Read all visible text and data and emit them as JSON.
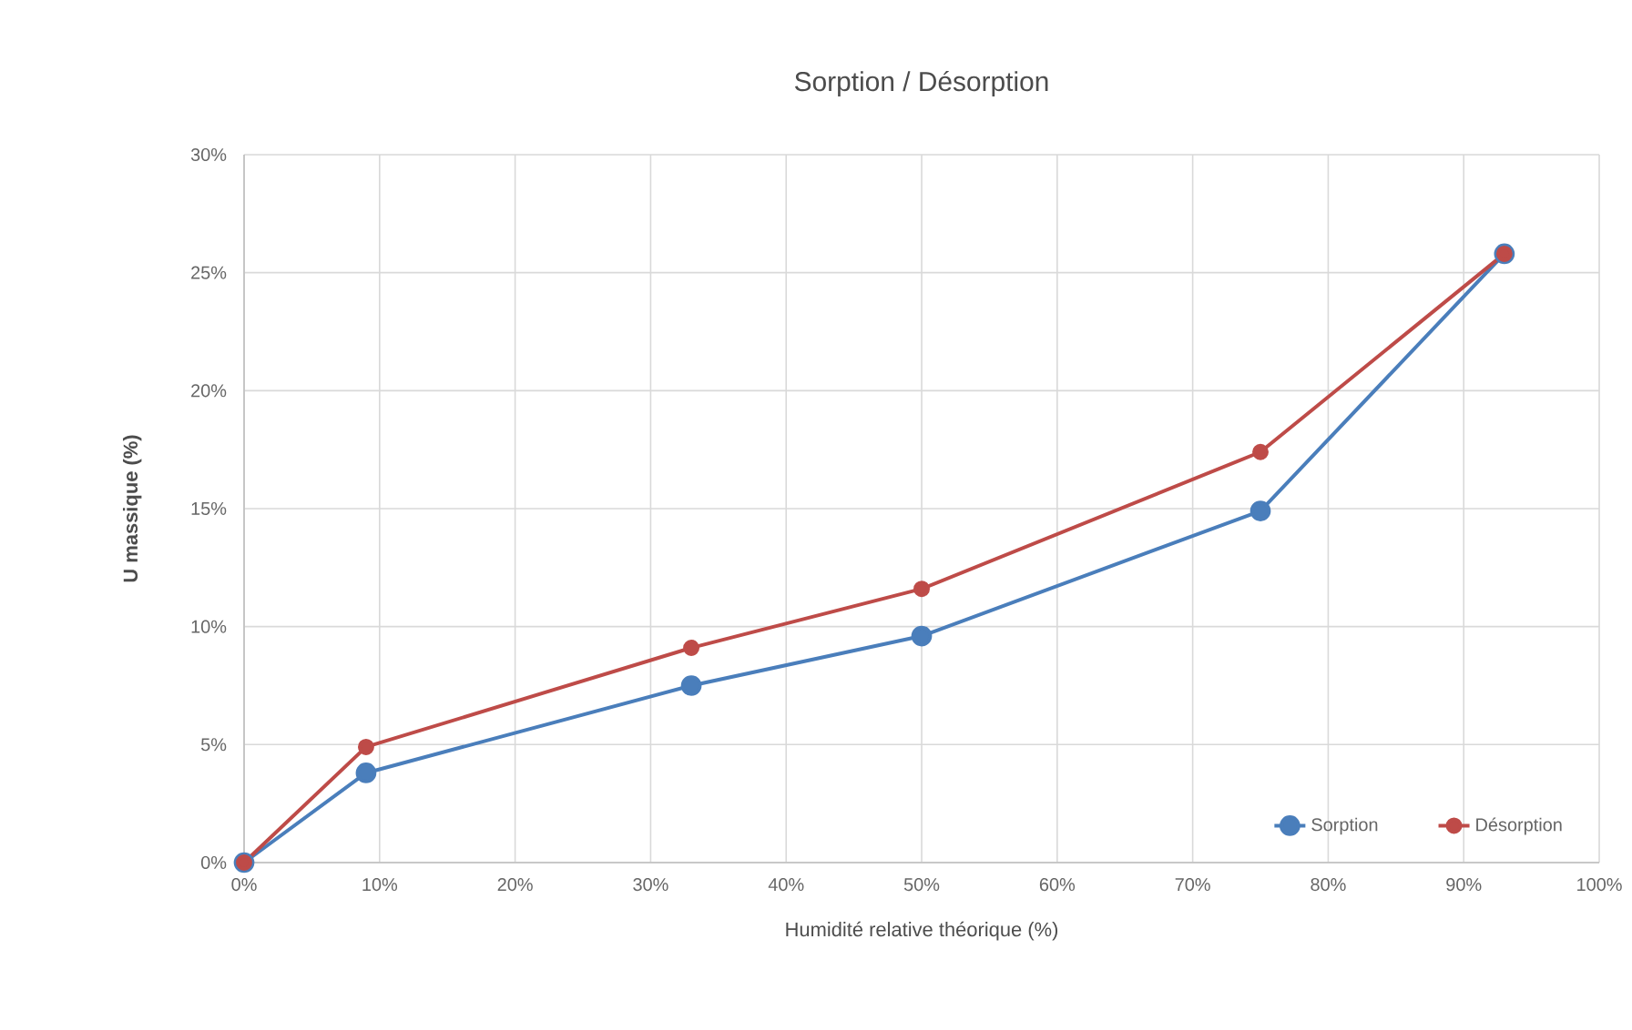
{
  "chart_data": {
    "type": "line",
    "title": "Sorption / Désorption",
    "xlabel": "Humidité relative théorique (%)",
    "ylabel": "U massique (%)",
    "x": [
      0,
      9,
      33,
      50,
      75,
      93
    ],
    "series": [
      {
        "name": "Sorption",
        "color": "#4a7ebb",
        "values": [
          0,
          3.8,
          7.5,
          9.6,
          14.9,
          25.8
        ]
      },
      {
        "name": "Désorption",
        "color": "#be4b48",
        "values": [
          0,
          4.9,
          9.1,
          11.6,
          17.4,
          25.8
        ]
      }
    ],
    "xlim": [
      0,
      100
    ],
    "ylim": [
      0,
      30
    ],
    "xticks": [
      {
        "value": 0,
        "label": "0%"
      },
      {
        "value": 10,
        "label": "10%"
      },
      {
        "value": 20,
        "label": "20%"
      },
      {
        "value": 30,
        "label": "30%"
      },
      {
        "value": 40,
        "label": "40%"
      },
      {
        "value": 50,
        "label": "50%"
      },
      {
        "value": 60,
        "label": "60%"
      },
      {
        "value": 70,
        "label": "70%"
      },
      {
        "value": 80,
        "label": "80%"
      },
      {
        "value": 90,
        "label": "90%"
      },
      {
        "value": 100,
        "label": "100%"
      }
    ],
    "yticks": [
      {
        "value": 0,
        "label": "0%"
      },
      {
        "value": 5,
        "label": "5%"
      },
      {
        "value": 10,
        "label": "10%"
      },
      {
        "value": 15,
        "label": "15%"
      },
      {
        "value": 20,
        "label": "20%"
      },
      {
        "value": 25,
        "label": "25%"
      },
      {
        "value": 30,
        "label": "30%"
      }
    ],
    "grid": true,
    "legend": "bottom right",
    "marker": "circle",
    "line_style": "solid"
  }
}
